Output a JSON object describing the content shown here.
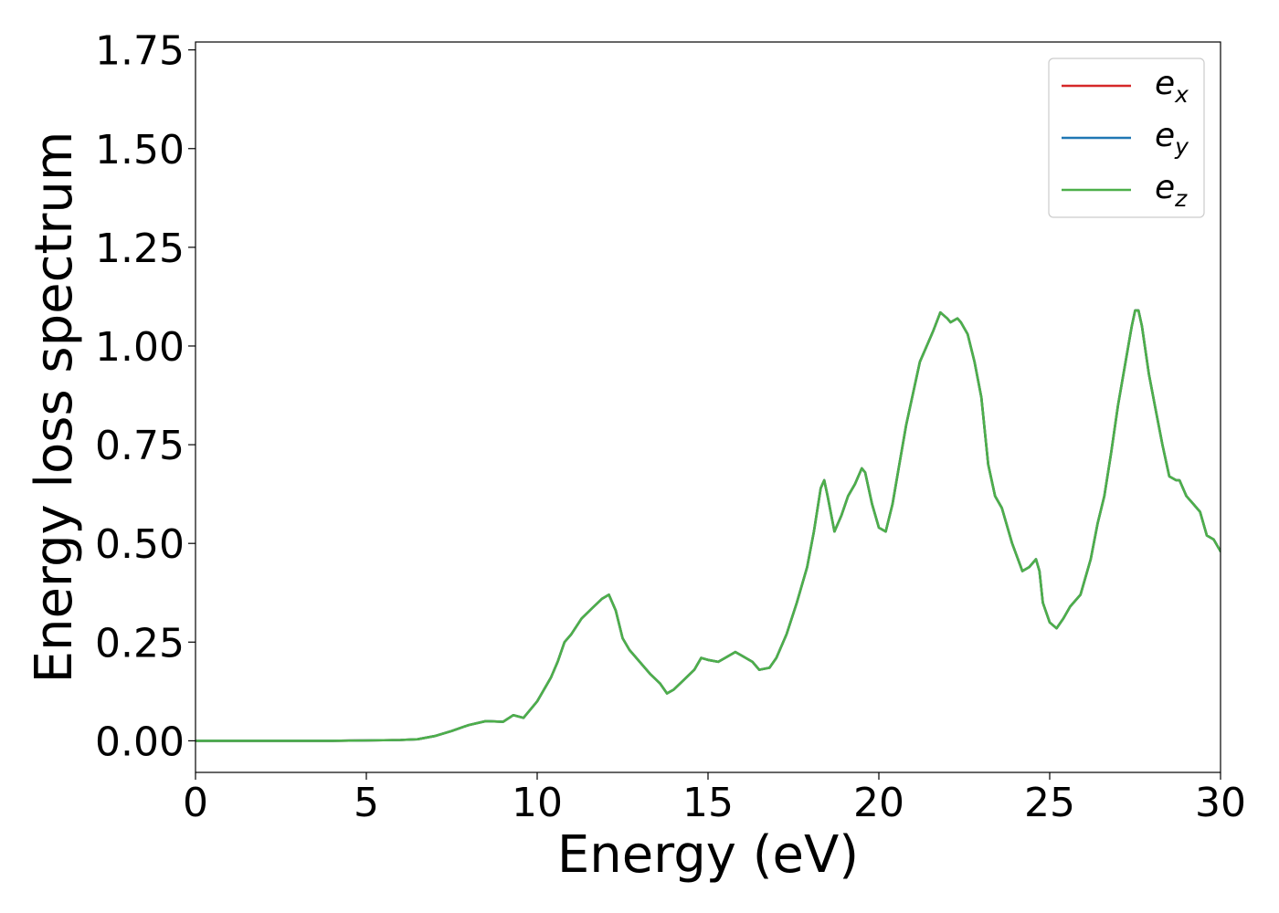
{
  "chart_data": {
    "type": "line",
    "title": "",
    "xlabel": "Energy (eV)",
    "ylabel": "Energy loss spectrum",
    "xlim": [
      0,
      30
    ],
    "ylim": [
      -0.08,
      1.77
    ],
    "xticks": [
      0,
      5,
      10,
      15,
      20,
      25,
      30
    ],
    "xtick_labels": [
      "0",
      "5",
      "10",
      "15",
      "20",
      "25",
      "30"
    ],
    "yticks": [
      0,
      0.25,
      0.5,
      0.75,
      1.0,
      1.25,
      1.5,
      1.75
    ],
    "ytick_labels": [
      "0.00",
      "0.25",
      "0.50",
      "0.75",
      "1.00",
      "1.25",
      "1.50",
      "1.75"
    ],
    "grid": false,
    "legend_position": "top-right",
    "x": [
      0,
      1,
      2,
      3,
      4,
      5,
      6,
      6.5,
      7,
      7.5,
      8,
      8.5,
      9,
      9.3,
      9.6,
      10,
      10.4,
      10.6,
      10.8,
      11,
      11.3,
      11.6,
      11.9,
      12.1,
      12.3,
      12.5,
      12.7,
      13,
      13.3,
      13.6,
      13.8,
      14,
      14.3,
      14.6,
      14.8,
      15,
      15.3,
      15.5,
      15.8,
      16,
      16.3,
      16.5,
      16.8,
      17,
      17.3,
      17.6,
      17.9,
      18.1,
      18.3,
      18.4,
      18.5,
      18.7,
      18.9,
      19.1,
      19.3,
      19.5,
      19.6,
      19.8,
      20,
      20.2,
      20.4,
      20.6,
      20.8,
      21,
      21.2,
      21.4,
      21.6,
      21.8,
      22,
      22.1,
      22.3,
      22.4,
      22.6,
      22.8,
      23,
      23.2,
      23.4,
      23.6,
      23.9,
      24.2,
      24.4,
      24.6,
      24.7,
      24.8,
      25,
      25.2,
      25.4,
      25.6,
      25.9,
      26.2,
      26.4,
      26.6,
      26.8,
      27,
      27.2,
      27.4,
      27.5,
      27.6,
      27.7,
      27.9,
      28.1,
      28.3,
      28.5,
      28.7,
      28.8,
      29,
      29.2,
      29.4,
      29.6,
      29.8,
      30
    ],
    "series": [
      {
        "name": "e_x",
        "label_base": "e",
        "label_sub": "x",
        "color": "#d62728",
        "y": [
          0.0,
          0.0,
          0.0,
          0.0,
          0.0,
          0.001,
          0.002,
          0.004,
          0.012,
          0.025,
          0.04,
          0.05,
          0.048,
          0.065,
          0.058,
          0.1,
          0.16,
          0.2,
          0.25,
          0.27,
          0.31,
          0.335,
          0.36,
          0.37,
          0.33,
          0.26,
          0.23,
          0.2,
          0.17,
          0.145,
          0.12,
          0.13,
          0.155,
          0.18,
          0.21,
          0.205,
          0.2,
          0.21,
          0.225,
          0.215,
          0.2,
          0.18,
          0.185,
          0.21,
          0.27,
          0.35,
          0.44,
          0.53,
          0.64,
          0.66,
          0.62,
          0.53,
          0.57,
          0.62,
          0.65,
          0.69,
          0.68,
          0.6,
          0.54,
          0.53,
          0.6,
          0.7,
          0.8,
          0.88,
          0.96,
          1.0,
          1.04,
          1.085,
          1.07,
          1.06,
          1.07,
          1.06,
          1.03,
          0.96,
          0.87,
          0.7,
          0.62,
          0.59,
          0.5,
          0.43,
          0.44,
          0.46,
          0.43,
          0.35,
          0.3,
          0.285,
          0.31,
          0.34,
          0.37,
          0.46,
          0.55,
          0.62,
          0.73,
          0.85,
          0.95,
          1.05,
          1.09,
          1.09,
          1.05,
          0.93,
          0.84,
          0.75,
          0.67,
          0.66,
          0.66,
          0.62,
          0.6,
          0.58,
          0.52,
          0.51,
          0.48
        ]
      },
      {
        "name": "e_y",
        "label_base": "e",
        "label_sub": "y",
        "color": "#1f77b4",
        "y": [
          0.0,
          0.0,
          0.0,
          0.0,
          0.0,
          0.001,
          0.002,
          0.004,
          0.012,
          0.025,
          0.04,
          0.05,
          0.048,
          0.065,
          0.058,
          0.1,
          0.16,
          0.2,
          0.25,
          0.27,
          0.31,
          0.335,
          0.36,
          0.37,
          0.33,
          0.26,
          0.23,
          0.2,
          0.17,
          0.145,
          0.12,
          0.13,
          0.155,
          0.18,
          0.21,
          0.205,
          0.2,
          0.21,
          0.225,
          0.215,
          0.2,
          0.18,
          0.185,
          0.21,
          0.27,
          0.35,
          0.44,
          0.53,
          0.64,
          0.66,
          0.62,
          0.53,
          0.57,
          0.62,
          0.65,
          0.69,
          0.68,
          0.6,
          0.54,
          0.53,
          0.6,
          0.7,
          0.8,
          0.88,
          0.96,
          1.0,
          1.04,
          1.085,
          1.07,
          1.06,
          1.07,
          1.06,
          1.03,
          0.96,
          0.87,
          0.7,
          0.62,
          0.59,
          0.5,
          0.43,
          0.44,
          0.46,
          0.43,
          0.35,
          0.3,
          0.285,
          0.31,
          0.34,
          0.37,
          0.46,
          0.55,
          0.62,
          0.73,
          0.85,
          0.95,
          1.05,
          1.09,
          1.09,
          1.05,
          0.93,
          0.84,
          0.75,
          0.67,
          0.66,
          0.66,
          0.62,
          0.6,
          0.58,
          0.52,
          0.51,
          0.48
        ]
      },
      {
        "name": "e_z",
        "label_base": "e",
        "label_sub": "z",
        "color": "#4daf4a",
        "y": [
          0.0,
          0.0,
          0.0,
          0.0,
          0.0,
          0.001,
          0.002,
          0.004,
          0.012,
          0.025,
          0.04,
          0.05,
          0.048,
          0.065,
          0.058,
          0.1,
          0.16,
          0.2,
          0.25,
          0.27,
          0.31,
          0.335,
          0.36,
          0.37,
          0.33,
          0.26,
          0.23,
          0.2,
          0.17,
          0.145,
          0.12,
          0.13,
          0.155,
          0.18,
          0.21,
          0.205,
          0.2,
          0.21,
          0.225,
          0.215,
          0.2,
          0.18,
          0.185,
          0.21,
          0.27,
          0.35,
          0.44,
          0.53,
          0.64,
          0.66,
          0.62,
          0.53,
          0.57,
          0.62,
          0.65,
          0.69,
          0.68,
          0.6,
          0.54,
          0.53,
          0.6,
          0.7,
          0.8,
          0.88,
          0.96,
          1.0,
          1.04,
          1.085,
          1.07,
          1.06,
          1.07,
          1.06,
          1.03,
          0.96,
          0.87,
          0.7,
          0.62,
          0.59,
          0.5,
          0.43,
          0.44,
          0.46,
          0.43,
          0.35,
          0.3,
          0.285,
          0.31,
          0.34,
          0.37,
          0.46,
          0.55,
          0.62,
          0.73,
          0.85,
          0.95,
          1.05,
          1.09,
          1.09,
          1.05,
          0.93,
          0.84,
          0.75,
          0.67,
          0.66,
          0.66,
          0.62,
          0.6,
          0.58,
          0.52,
          0.51,
          0.48
        ]
      }
    ]
  }
}
